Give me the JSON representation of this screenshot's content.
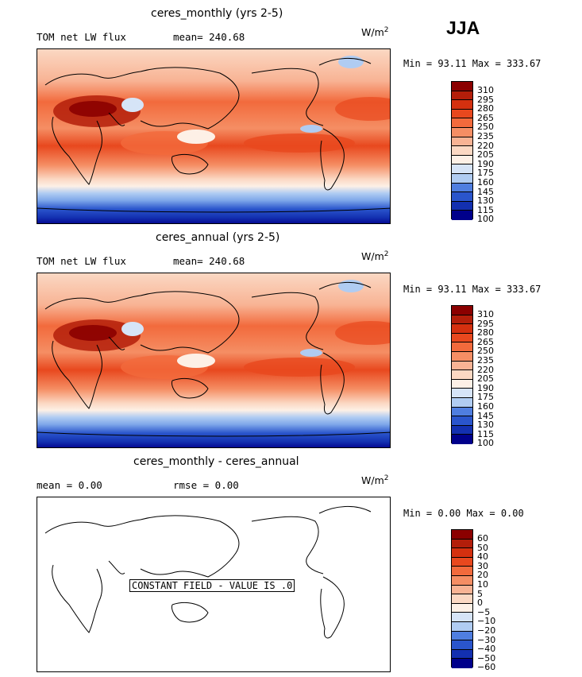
{
  "season": "JJA",
  "units": "W/m",
  "units_sup": "2",
  "panels": [
    {
      "title": "ceres_monthly (yrs 2-5)",
      "variable": "TOM net LW flux",
      "stat": "mean= 240.68",
      "minmax": "Min =  93.11 Max = 333.67",
      "colorbar_labels": [
        "310",
        "295",
        "280",
        "265",
        "250",
        "235",
        "220",
        "205",
        "190",
        "175",
        "160",
        "145",
        "130",
        "115",
        "100"
      ]
    },
    {
      "title": "ceres_annual (yrs 2-5)",
      "variable": "TOM net LW flux",
      "stat": "mean= 240.68",
      "minmax": "Min =  93.11  Max = 333.67",
      "colorbar_labels": [
        "310",
        "295",
        "280",
        "265",
        "250",
        "235",
        "220",
        "205",
        "190",
        "175",
        "160",
        "145",
        "130",
        "115",
        "100"
      ]
    },
    {
      "title": "ceres_monthly - ceres_annual",
      "stat_mean": "mean =    0.00",
      "stat_rmse": "rmse =    0.00",
      "minmax": "Min =   0.00 Max =   0.00",
      "constant_note": "CONSTANT FIELD - VALUE IS .0",
      "colorbar_labels": [
        "60",
        "50",
        "40",
        "30",
        "20",
        "10",
        "5",
        "0",
        "−5",
        "−10",
        "−20",
        "−30",
        "−40",
        "−50",
        "−60"
      ]
    }
  ],
  "colors": {
    "palette": [
      "#8b0000",
      "#b31e0a",
      "#d4300f",
      "#e8481e",
      "#f26a3c",
      "#f58e64",
      "#f8b394",
      "#fbd8c3",
      "#fdf0e6",
      "#d6e4f7",
      "#b0ccf2",
      "#7fa8ea",
      "#4f7ee0",
      "#2a55cc",
      "#1330b0",
      "#00008b"
    ]
  }
}
